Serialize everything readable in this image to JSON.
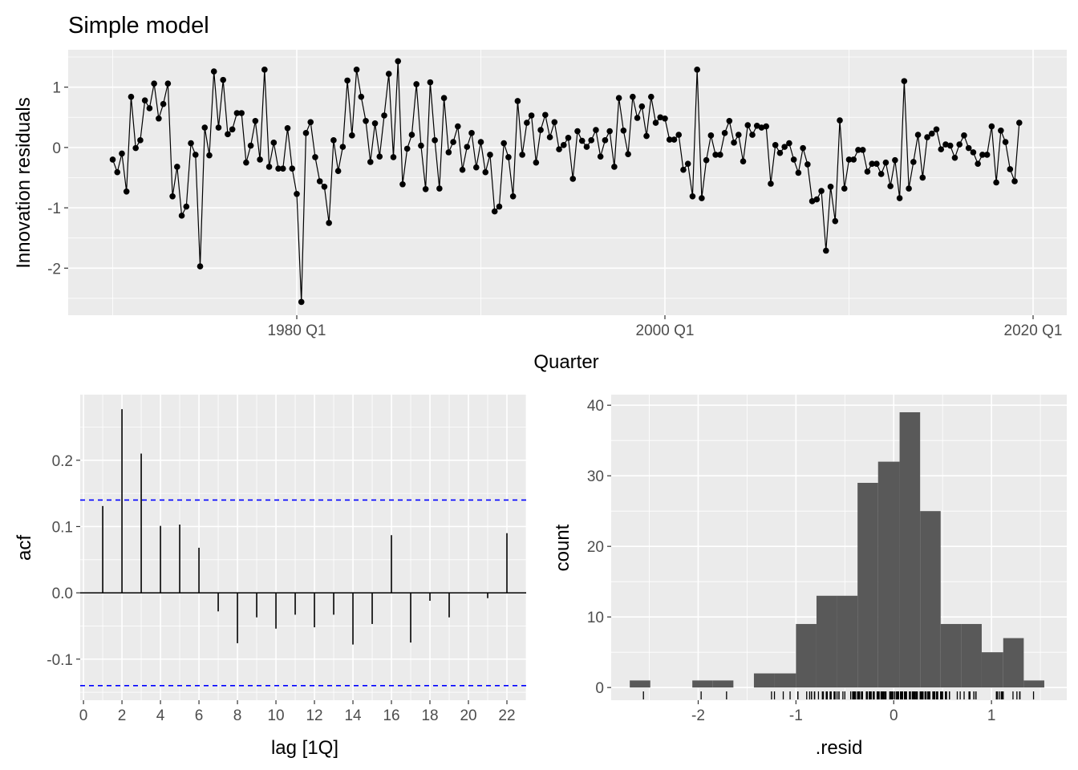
{
  "chart_data": [
    {
      "type": "line",
      "title": "Simple model",
      "xlabel": "Quarter",
      "ylabel": "Innovation residuals",
      "x_ticks": [
        "1980 Q1",
        "2000 Q1",
        "2020 Q1"
      ],
      "y_ticks": [
        -2,
        -1,
        0,
        1
      ],
      "ylim": [
        -2.78,
        1.62
      ],
      "markers": "points",
      "color": "#000000",
      "grid": true,
      "x": [
        "1970 Q1",
        "1970 Q2",
        "1970 Q3",
        "1970 Q4",
        "1971 Q1",
        "1971 Q2",
        "1971 Q3",
        "1971 Q4",
        "1972 Q1",
        "1972 Q2",
        "1972 Q3",
        "1972 Q4",
        "1973 Q1",
        "1973 Q2",
        "1973 Q3",
        "1973 Q4",
        "1974 Q1",
        "1974 Q2",
        "1974 Q3",
        "1974 Q4",
        "1975 Q1",
        "1975 Q2",
        "1975 Q3",
        "1975 Q4",
        "1976 Q1",
        "1976 Q2",
        "1976 Q3",
        "1976 Q4",
        "1977 Q1",
        "1977 Q2",
        "1977 Q3",
        "1977 Q4",
        "1978 Q1",
        "1978 Q2",
        "1978 Q3",
        "1978 Q4",
        "1979 Q1",
        "1979 Q2",
        "1979 Q3",
        "1979 Q4",
        "1980 Q1",
        "1980 Q2",
        "1980 Q3",
        "1980 Q4",
        "1981 Q1",
        "1981 Q2",
        "1981 Q3",
        "1981 Q4",
        "1982 Q1",
        "1982 Q2",
        "1982 Q3",
        "1982 Q4",
        "1983 Q1",
        "1983 Q2",
        "1983 Q3",
        "1983 Q4",
        "1984 Q1",
        "1984 Q2",
        "1984 Q3",
        "1984 Q4",
        "1985 Q1",
        "1985 Q2",
        "1985 Q3",
        "1985 Q4",
        "1986 Q1",
        "1986 Q2",
        "1986 Q3",
        "1986 Q4",
        "1987 Q1",
        "1987 Q2",
        "1987 Q3",
        "1987 Q4",
        "1988 Q1",
        "1988 Q2",
        "1988 Q3",
        "1988 Q4",
        "1989 Q1",
        "1989 Q2",
        "1989 Q3",
        "1989 Q4",
        "1990 Q1",
        "1990 Q2",
        "1990 Q3",
        "1990 Q4",
        "1991 Q1",
        "1991 Q2",
        "1991 Q3",
        "1991 Q4",
        "1992 Q1",
        "1992 Q2",
        "1992 Q3",
        "1992 Q4",
        "1993 Q1",
        "1993 Q2",
        "1993 Q3",
        "1993 Q4",
        "1994 Q1",
        "1994 Q2",
        "1994 Q3",
        "1994 Q4",
        "1995 Q1",
        "1995 Q2",
        "1995 Q3",
        "1995 Q4",
        "1996 Q1",
        "1996 Q2",
        "1996 Q3",
        "1996 Q4",
        "1997 Q1",
        "1997 Q2",
        "1997 Q3",
        "1997 Q4",
        "1998 Q1",
        "1998 Q2",
        "1998 Q3",
        "1998 Q4",
        "1999 Q1",
        "1999 Q2",
        "1999 Q3",
        "1999 Q4",
        "2000 Q1",
        "2000 Q2",
        "2000 Q3",
        "2000 Q4",
        "2001 Q1",
        "2001 Q2",
        "2001 Q3",
        "2001 Q4",
        "2002 Q1",
        "2002 Q2",
        "2002 Q3",
        "2002 Q4",
        "2003 Q1",
        "2003 Q2",
        "2003 Q3",
        "2003 Q4",
        "2004 Q1",
        "2004 Q2",
        "2004 Q3",
        "2004 Q4",
        "2005 Q1",
        "2005 Q2",
        "2005 Q3",
        "2005 Q4",
        "2006 Q1",
        "2006 Q2",
        "2006 Q3",
        "2006 Q4",
        "2007 Q1",
        "2007 Q2",
        "2007 Q3",
        "2007 Q4",
        "2008 Q1",
        "2008 Q2",
        "2008 Q3",
        "2008 Q4",
        "2009 Q1",
        "2009 Q2",
        "2009 Q3",
        "2009 Q4",
        "2010 Q1",
        "2010 Q2",
        "2010 Q3",
        "2010 Q4",
        "2011 Q1",
        "2011 Q2",
        "2011 Q3",
        "2011 Q4",
        "2012 Q1",
        "2012 Q2",
        "2012 Q3",
        "2012 Q4",
        "2013 Q1",
        "2013 Q2",
        "2013 Q3",
        "2013 Q4",
        "2014 Q1",
        "2014 Q2",
        "2014 Q3",
        "2014 Q4",
        "2015 Q1",
        "2015 Q2",
        "2015 Q3",
        "2015 Q4",
        "2016 Q1",
        "2016 Q2",
        "2016 Q3",
        "2016 Q4",
        "2017 Q1",
        "2017 Q2",
        "2017 Q3",
        "2017 Q4",
        "2018 Q1",
        "2018 Q2",
        "2018 Q3",
        "2018 Q4",
        "2019 Q1",
        "2019 Q2"
      ],
      "y": [
        -0.2,
        -0.41,
        -0.1,
        -0.73,
        0.84,
        -0.01,
        0.12,
        0.78,
        0.65,
        1.06,
        0.48,
        0.72,
        1.06,
        -0.81,
        -0.32,
        -1.13,
        -0.98,
        0.07,
        -0.12,
        -1.97,
        0.33,
        -0.13,
        1.26,
        0.33,
        1.12,
        0.22,
        0.3,
        0.57,
        0.57,
        -0.25,
        0.03,
        0.44,
        -0.2,
        1.29,
        -0.32,
        0.08,
        -0.35,
        -0.35,
        0.32,
        -0.35,
        -0.77,
        -2.56,
        0.24,
        0.42,
        -0.16,
        -0.56,
        -0.65,
        -1.25,
        0.12,
        -0.39,
        0.01,
        1.11,
        0.2,
        1.29,
        0.84,
        0.44,
        -0.24,
        0.4,
        -0.15,
        0.53,
        1.22,
        -0.16,
        1.43,
        -0.61,
        -0.02,
        0.21,
        1.05,
        0.03,
        -0.69,
        1.08,
        0.12,
        -0.68,
        0.82,
        -0.08,
        0.09,
        0.35,
        -0.37,
        0.01,
        0.24,
        -0.33,
        0.09,
        -0.41,
        -0.12,
        -1.06,
        -0.98,
        0.07,
        -0.16,
        -0.81,
        0.77,
        -0.12,
        0.41,
        0.53,
        -0.25,
        0.29,
        0.54,
        0.17,
        0.42,
        -0.03,
        0.04,
        0.16,
        -0.52,
        0.27,
        0.11,
        0.01,
        0.12,
        0.29,
        -0.15,
        0.12,
        0.27,
        -0.32,
        0.82,
        0.28,
        -0.11,
        0.84,
        0.49,
        0.68,
        0.19,
        0.84,
        0.41,
        0.5,
        0.48,
        0.13,
        0.13,
        0.21,
        -0.37,
        -0.27,
        -0.81,
        1.29,
        -0.84,
        -0.21,
        0.2,
        -0.12,
        -0.12,
        0.24,
        0.44,
        0.08,
        0.21,
        -0.23,
        0.37,
        0.21,
        0.36,
        0.33,
        0.35,
        -0.6,
        0.04,
        -0.09,
        0.01,
        0.07,
        -0.2,
        -0.42,
        -0.01,
        -0.28,
        -0.89,
        -0.86,
        -0.72,
        -1.71,
        -0.65,
        -1.22,
        0.45,
        -0.68,
        -0.2,
        -0.2,
        -0.04,
        -0.04,
        -0.4,
        -0.27,
        -0.27,
        -0.44,
        -0.25,
        -0.64,
        -0.21,
        -0.84,
        1.1,
        -0.68,
        -0.24,
        0.21,
        -0.5,
        0.17,
        0.23,
        0.3,
        -0.03,
        0.05,
        0.03,
        -0.17,
        0.05,
        0.2,
        -0.01,
        -0.08,
        -0.27,
        -0.12,
        -0.12,
        0.35,
        -0.58,
        0.28,
        0.09,
        -0.36,
        -0.56,
        0.41
      ]
    },
    {
      "type": "bar",
      "xlabel": "lag [1Q]",
      "ylabel": "acf",
      "x_ticks": [
        0,
        2,
        4,
        6,
        8,
        10,
        12,
        14,
        16,
        18,
        20,
        22
      ],
      "y_ticks": [
        -0.1,
        0.0,
        0.1,
        0.2
      ],
      "y_tick_labels": [
        "-0.1",
        "0.0",
        "0.1",
        "0.2"
      ],
      "xlim": [
        -0.17,
        23.0
      ],
      "ylim": [
        -0.162,
        0.299
      ],
      "grid": true,
      "categories": [
        1,
        2,
        3,
        4,
        5,
        6,
        7,
        8,
        9,
        10,
        11,
        12,
        13,
        14,
        15,
        16,
        17,
        18,
        19,
        20,
        21,
        22
      ],
      "values": [
        0.131,
        0.277,
        0.21,
        0.101,
        0.103,
        0.068,
        -0.028,
        -0.076,
        -0.037,
        -0.054,
        -0.033,
        -0.052,
        -0.033,
        -0.078,
        -0.047,
        0.087,
        -0.075,
        -0.012,
        -0.037,
        0.0,
        -0.008,
        0.09
      ],
      "confidence_bounds": [
        -0.14,
        0.14
      ],
      "confidence_color": "#0000FF"
    },
    {
      "type": "bar",
      "subtype": "histogram",
      "xlabel": ".resid",
      "ylabel": "count",
      "x_ticks": [
        -2,
        -1,
        0,
        1
      ],
      "y_ticks": [
        0,
        10,
        20,
        30,
        40
      ],
      "xlim": [
        -2.89,
        1.77
      ],
      "ylim": [
        -1.8,
        41.5
      ],
      "grid": true,
      "bar_color": "#595959",
      "bin_edges": [
        -2.7,
        -2.49,
        -2.28,
        -2.06,
        -1.85,
        -1.64,
        -1.43,
        -1.22,
        -1.0,
        -0.79,
        -0.58,
        -0.37,
        -0.16,
        0.06,
        0.27,
        0.48,
        0.69,
        0.9,
        1.12,
        1.33,
        1.54
      ],
      "counts": [
        1,
        0,
        0,
        1,
        1,
        0,
        2,
        2,
        9,
        13,
        13,
        29,
        32,
        39,
        25,
        9,
        9,
        5,
        7,
        1
      ],
      "rug": true
    }
  ]
}
